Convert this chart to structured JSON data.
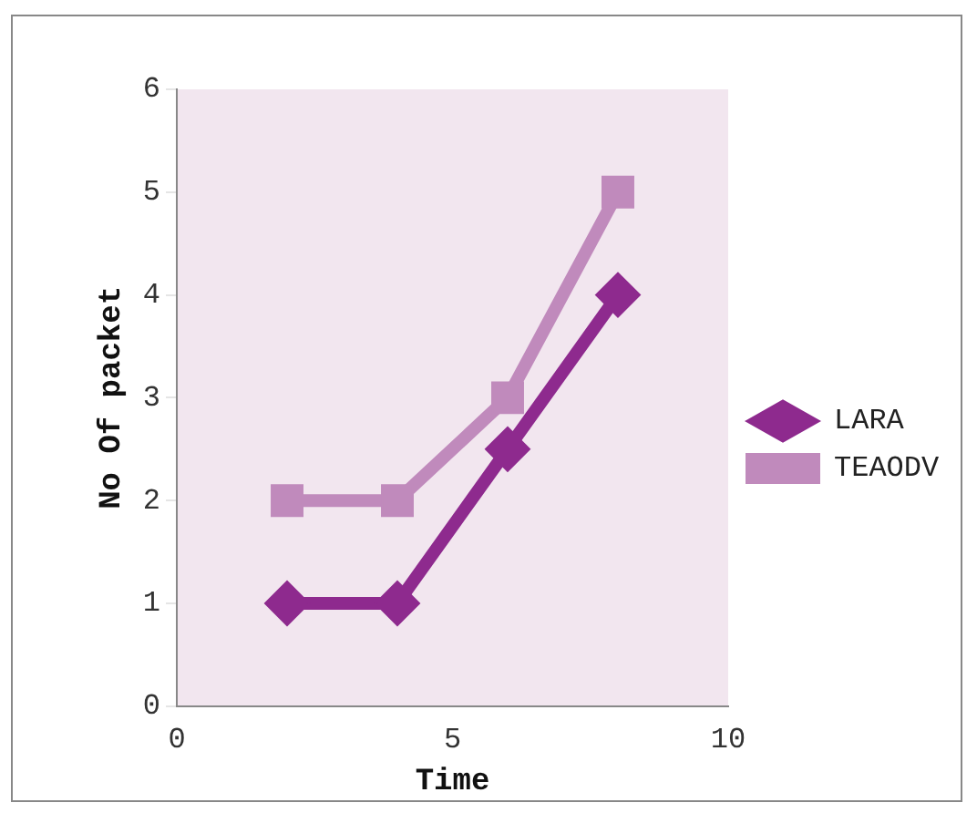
{
  "chart_data": {
    "type": "line",
    "xlabel": "Time",
    "ylabel": "No Of packet",
    "xlim": [
      0,
      10
    ],
    "xticks": [
      0,
      5,
      10
    ],
    "ylim": [
      0,
      6
    ],
    "yticks": [
      0,
      1,
      2,
      3,
      4,
      5,
      6
    ],
    "grid": false,
    "legend": "right",
    "series": [
      {
        "name": "LARA",
        "color": "#8e2a8e",
        "marker": "diamond",
        "x": [
          2,
          4,
          6,
          8
        ],
        "values": [
          1,
          1,
          2.5,
          4
        ]
      },
      {
        "name": "TEAODV",
        "color": "#c08abc",
        "marker": "square",
        "x": [
          2,
          4,
          6,
          8
        ],
        "values": [
          2,
          2,
          3,
          5
        ]
      }
    ]
  }
}
